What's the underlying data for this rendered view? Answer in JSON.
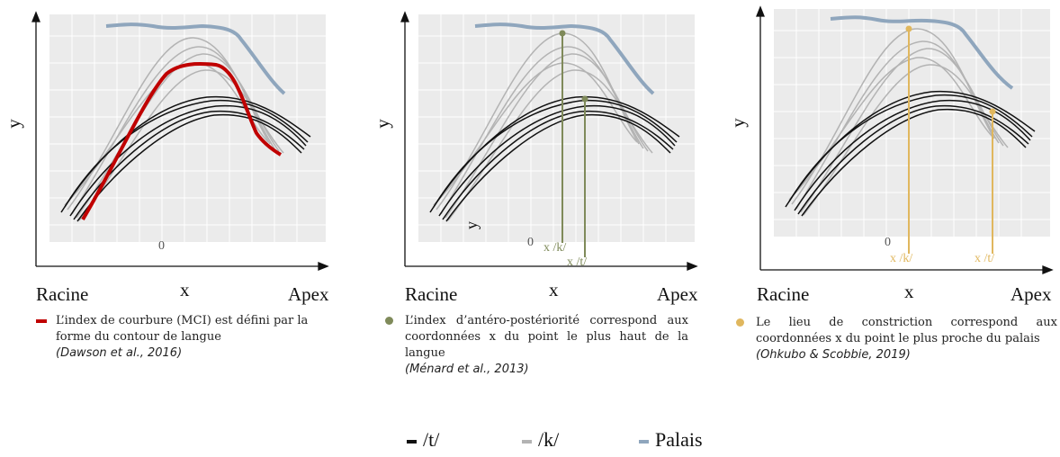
{
  "colors": {
    "t": "#111111",
    "k": "#b3b3b3",
    "palate": "#8fa6bd",
    "mci": "#c00000",
    "anteroposterior": "#7f8a5a",
    "constriction": "#e0b75e",
    "grid_bg": "#ebebeb"
  },
  "panels": [
    {
      "y_label": "y",
      "x_label": "x",
      "racine_label": "Racine",
      "apex_label": "Apex",
      "origin_label": "0",
      "caption": "L’index de courbure (MCI) est défini par la forme du contour de langue",
      "reference": "(Dawson et al., 2016)"
    },
    {
      "y_label": "y",
      "x_label": "x",
      "racine_label": "Racine",
      "apex_label": "Apex",
      "origin_label": "0",
      "inner_y_label": "y",
      "marker_k": "x /k/",
      "marker_t": "x /t/",
      "caption": "L’index d’antéro-postériorité correspond aux coordonnées x du point le plus haut de la langue",
      "reference": "(Ménard et al., 2013)"
    },
    {
      "y_label": "y",
      "x_label": "x",
      "racine_label": "Racine",
      "apex_label": "Apex",
      "origin_label": "0",
      "marker_k": "x /k/",
      "marker_t": "x /t/",
      "caption": "Le lieu de constriction correspond aux coordonnées x du point le plus proche du palais",
      "reference": "(Ohkubo & Scobbie, 2019)"
    }
  ],
  "legend": {
    "t": "/t/",
    "k": "/k/",
    "palate": "Palais"
  }
}
